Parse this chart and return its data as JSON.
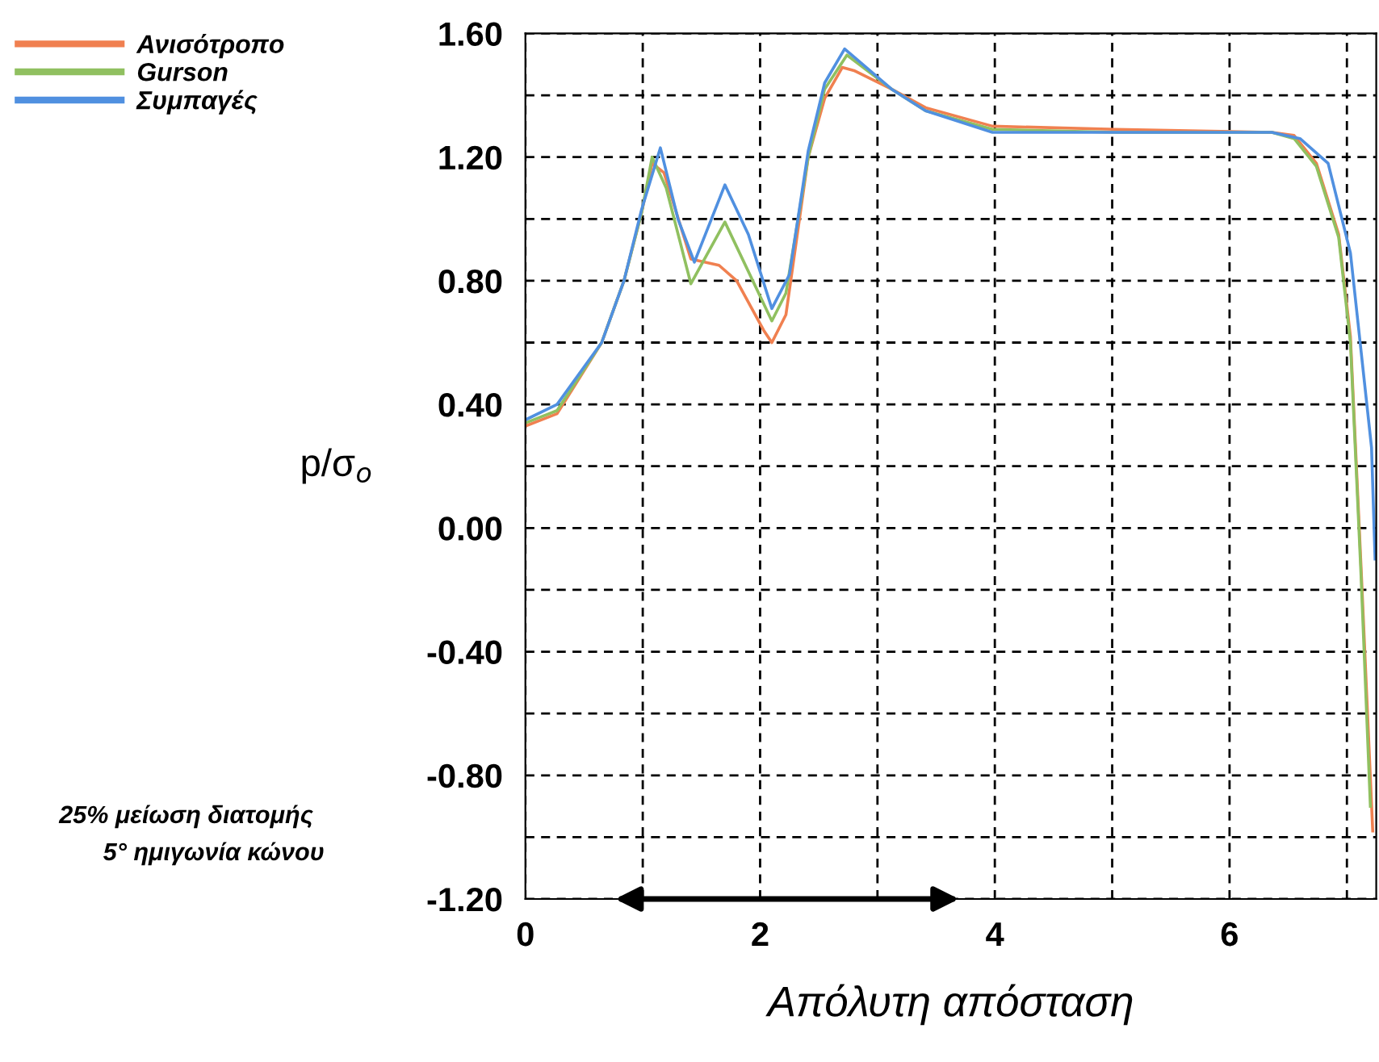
{
  "chart_data": {
    "type": "line",
    "xlabel": "Απόλυτη απόσταση",
    "ylabel": "p/σ$_{o}$",
    "xlim": [
      0,
      7.25
    ],
    "ylim": [
      -1.2,
      1.6
    ],
    "xticks": [
      0,
      {
        "value": 1,
        "label": null
      },
      2,
      {
        "value": 3,
        "label": null
      },
      4,
      {
        "value": 5,
        "label": null
      },
      6,
      {
        "value": 7,
        "label": null
      }
    ],
    "yticks": [
      {
        "value": -1.2,
        "label": "-1.20"
      },
      {
        "value": -1.0,
        "label": null
      },
      {
        "value": -0.8,
        "label": "-0.80"
      },
      {
        "value": -0.6,
        "label": null
      },
      {
        "value": -0.4,
        "label": "-0.40"
      },
      {
        "value": -0.2,
        "label": null
      },
      {
        "value": 0,
        "label": "0.00"
      },
      {
        "value": 0.2,
        "label": null
      },
      {
        "value": 0.4,
        "label": "0.40"
      },
      {
        "value": 0.6,
        "label": null
      },
      {
        "value": 0.8,
        "label": "0.80"
      },
      {
        "value": 1.0,
        "label": null
      },
      {
        "value": 1.2,
        "label": "1.20"
      },
      {
        "value": 1.4,
        "label": null
      },
      {
        "value": 1.6,
        "label": "1.60"
      }
    ],
    "grid": true,
    "legend": "top left",
    "line_style": "solid",
    "marker": "none",
    "annotations": [
      "25% μείωση διατομής",
      "5° ημιγωνία κώνου"
    ],
    "series": [
      {
        "name": "Ανισότροπο",
        "color": "#f08050",
        "x": [
          0,
          0.27,
          0.65,
          0.84,
          0.99,
          1.08,
          1.18,
          1.41,
          1.65,
          1.8,
          2.03,
          2.1,
          2.22,
          2.41,
          2.55,
          2.7,
          2.8,
          3.12,
          3.41,
          3.98,
          5.03,
          6.36,
          6.55,
          6.74,
          6.93,
          7.03,
          7.12,
          7.22
        ],
        "values": [
          0.33,
          0.37,
          0.6,
          0.8,
          1.02,
          1.18,
          1.15,
          0.87,
          0.85,
          0.8,
          0.64,
          0.6,
          0.69,
          1.2,
          1.39,
          1.49,
          1.48,
          1.42,
          1.36,
          1.3,
          1.29,
          1.28,
          1.27,
          1.18,
          0.95,
          0.62,
          -0.12,
          -0.98
        ]
      },
      {
        "name": "Gurson",
        "color": "#90c060",
        "x": [
          0,
          0.27,
          0.65,
          0.84,
          0.99,
          1.08,
          1.2,
          1.41,
          1.7,
          2.1,
          2.22,
          2.41,
          2.55,
          2.74,
          3.12,
          3.41,
          3.98,
          5.03,
          6.36,
          6.55,
          6.74,
          6.93,
          7.03,
          7.12,
          7.2
        ],
        "values": [
          0.34,
          0.38,
          0.6,
          0.8,
          1.02,
          1.2,
          1.1,
          0.79,
          0.99,
          0.67,
          0.76,
          1.2,
          1.42,
          1.53,
          1.42,
          1.35,
          1.29,
          1.28,
          1.28,
          1.26,
          1.17,
          0.94,
          0.6,
          -0.15,
          -0.9
        ]
      },
      {
        "name": "Συμπαγές",
        "color": "#5090e0",
        "x": [
          0,
          0.27,
          0.65,
          0.84,
          0.99,
          1.15,
          1.3,
          1.44,
          1.7,
          1.9,
          2.1,
          2.25,
          2.41,
          2.55,
          2.72,
          3.12,
          3.41,
          3.98,
          5.03,
          6.36,
          6.6,
          6.84,
          7.03,
          7.21,
          7.24
        ],
        "values": [
          0.35,
          0.4,
          0.6,
          0.8,
          1.03,
          1.23,
          1.0,
          0.86,
          1.11,
          0.95,
          0.71,
          0.82,
          1.22,
          1.44,
          1.55,
          1.42,
          1.35,
          1.28,
          1.28,
          1.28,
          1.26,
          1.18,
          0.89,
          0.26,
          -0.1
        ]
      }
    ]
  }
}
